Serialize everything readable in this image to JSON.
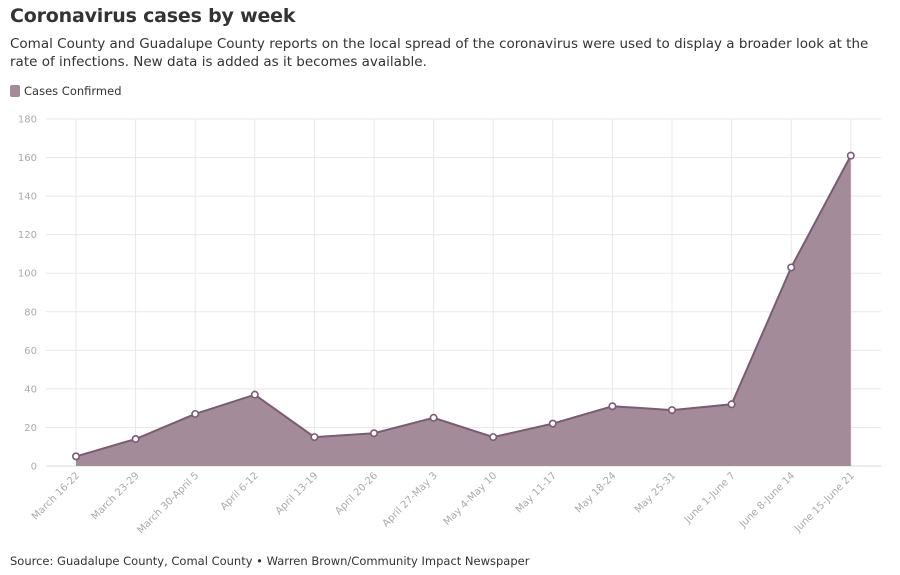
{
  "header": {
    "title": "Coronavirus cases by week",
    "subtitle": "Comal County and Guadalupe County reports on the local spread of the coronavirus were used to display a broader look at the rate of infections. New data is added as it becomes available."
  },
  "footer": {
    "source": "Source: Guadalupe County, Comal County • Warren Brown/Community Impact Newspaper"
  },
  "colors": {
    "series_fill": "#a48b99",
    "series_line": "#7d5a73",
    "grid": "#e8e8e8",
    "axis_text": "#aaaaaa"
  },
  "chart_data": {
    "type": "area",
    "title": "Coronavirus cases by week",
    "xlabel": "",
    "ylabel": "",
    "categories": [
      "March 16-22",
      "March 23-29",
      "March 30-April 5",
      "April 6-12",
      "April 13-19",
      "April 20-26",
      "April 27-May 3",
      "May 4-May 10",
      "May 11-17",
      "May 18-24",
      "May 25-31",
      "June 1-June 7",
      "June 8-June 14",
      "June 15-June 21"
    ],
    "series": [
      {
        "name": "Cases Confirmed",
        "values": [
          5,
          14,
          27,
          37,
          15,
          17,
          25,
          15,
          22,
          31,
          29,
          32,
          103,
          161
        ]
      }
    ],
    "ylim": [
      0,
      180
    ],
    "yticks": [
      0,
      20,
      40,
      60,
      80,
      100,
      120,
      140,
      160,
      180
    ],
    "grid": true,
    "legend": "top-left"
  }
}
